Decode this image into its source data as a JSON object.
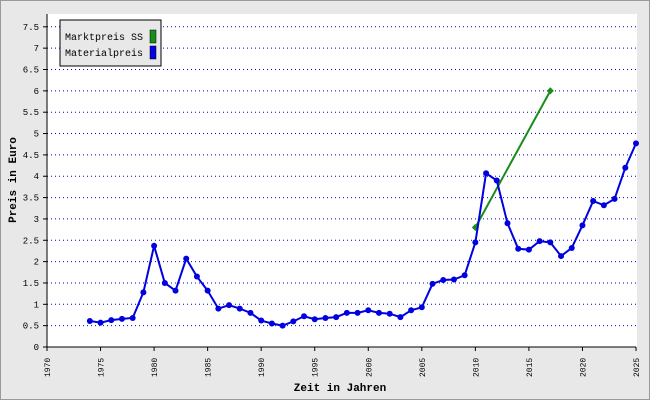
{
  "chart_data": {
    "type": "line",
    "xlabel": "Zeit in Jahren",
    "ylabel": "Preis in Euro",
    "xlim": [
      1970,
      2025
    ],
    "xticks": [
      1970,
      1975,
      1980,
      1985,
      1990,
      1995,
      2000,
      2005,
      2010,
      2015,
      2020,
      2025
    ],
    "ylim": [
      0,
      7.8
    ],
    "yticks": [
      0,
      0.5,
      1,
      1.5,
      2,
      2.5,
      3,
      3.5,
      4,
      4.5,
      5,
      5.5,
      6,
      6.5,
      7,
      7.5
    ],
    "grid": true,
    "legend": "top-left",
    "series": [
      {
        "name": "Marktpreis SS",
        "color": "#1a8c1a",
        "x": [
          2010,
          2017
        ],
        "values": [
          2.8,
          6.0
        ]
      },
      {
        "name": "Materialpreis",
        "color": "#0000e0",
        "x": [
          1974,
          1975,
          1976,
          1977,
          1978,
          1979,
          1980,
          1981,
          1982,
          1983,
          1984,
          1985,
          1986,
          1987,
          1988,
          1989,
          1990,
          1991,
          1992,
          1993,
          1994,
          1995,
          1996,
          1997,
          1998,
          1999,
          2000,
          2001,
          2002,
          2003,
          2004,
          2005,
          2006,
          2007,
          2008,
          2009,
          2010,
          2011,
          2012,
          2013,
          2014,
          2015,
          2016,
          2017,
          2018,
          2019,
          2020,
          2021,
          2022,
          2023,
          2024,
          2025
        ],
        "values": [
          0.61,
          0.57,
          0.63,
          0.66,
          0.68,
          1.28,
          2.37,
          1.5,
          1.32,
          2.07,
          1.65,
          1.32,
          0.9,
          0.98,
          0.9,
          0.8,
          0.62,
          0.55,
          0.5,
          0.6,
          0.72,
          0.65,
          0.68,
          0.7,
          0.8,
          0.8,
          0.86,
          0.8,
          0.78,
          0.7,
          0.86,
          0.93,
          1.48,
          1.57,
          1.58,
          1.68,
          2.45,
          4.07,
          3.9,
          2.9,
          2.3,
          2.28,
          2.48,
          2.45,
          2.13,
          2.32,
          2.85,
          3.42,
          3.32,
          3.47,
          4.2,
          4.77
        ]
      }
    ]
  }
}
